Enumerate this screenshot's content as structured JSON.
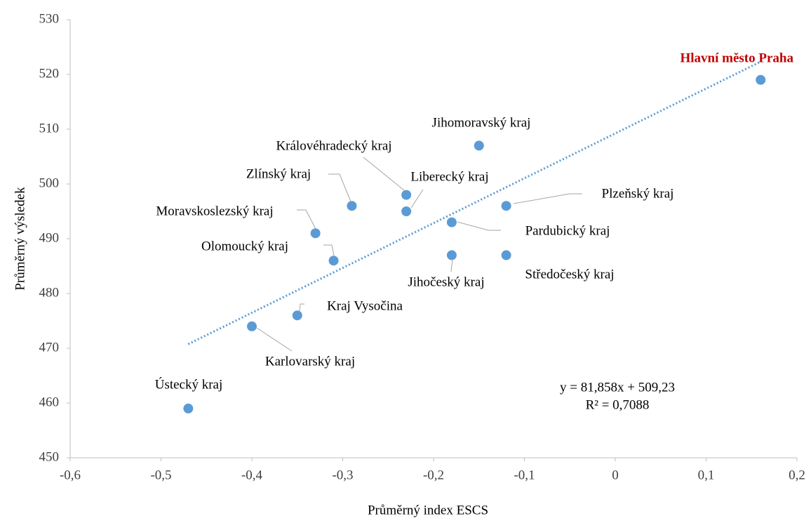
{
  "chart_data": {
    "type": "scatter",
    "x_label": "Průměrný index ESCS",
    "y_label": "Průměrný výsledek",
    "labels": [
      "Hlavní město Praha",
      "Jihomoravský kraj",
      "Královéhradecký kraj",
      "Liberecký kraj",
      "Zlínský kraj",
      "Plzeňský kraj",
      "Pardubický kraj",
      "Moravskoslezský kraj",
      "Olomoucký kraj",
      "Jihočeský kraj",
      "Středočeský kraj",
      "Kraj Vysočina",
      "Karlovarský kraj",
      "Ústecký kraj"
    ],
    "x": [
      0.16,
      -0.15,
      -0.23,
      -0.23,
      -0.29,
      -0.12,
      -0.18,
      -0.33,
      -0.31,
      -0.18,
      -0.12,
      -0.35,
      -0.4,
      -0.47
    ],
    "values": [
      519,
      507,
      498,
      495,
      496,
      496,
      493,
      491,
      486,
      487,
      487,
      476,
      474,
      459
    ],
    "color": "#5b9bd5",
    "highlight_index": 0,
    "highlight_color": "#c00000",
    "trendline_label": [
      "y = 81,858x + 509,23",
      "R² = 0,7088"
    ],
    "trendline_color": "#5b9bd5",
    "xlim": [
      -0.6,
      0.2
    ],
    "xticks": [
      {
        "value": -0.6,
        "label": "-0,6"
      },
      {
        "value": -0.5,
        "label": "-0,5"
      },
      {
        "value": -0.4,
        "label": "-0,4"
      },
      {
        "value": -0.3,
        "label": "-0,3"
      },
      {
        "value": -0.2,
        "label": "-0,2"
      },
      {
        "value": -0.1,
        "label": "-0,1"
      },
      0,
      {
        "value": 0.1,
        "label": "0,1"
      },
      {
        "value": 0.2,
        "label": "0,2"
      }
    ],
    "ylim": [
      450,
      530
    ],
    "yticks": [
      450,
      460,
      470,
      480,
      490,
      500,
      510,
      520,
      530
    ]
  }
}
